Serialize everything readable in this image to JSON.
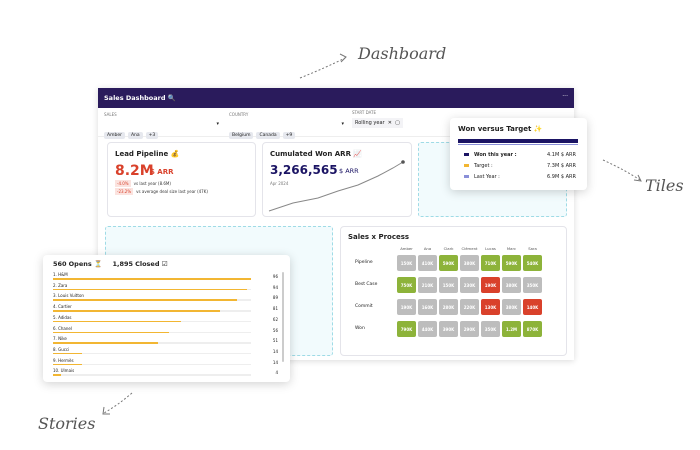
{
  "annotations": {
    "dashboard": "Dashboard",
    "tiles": "Tiles",
    "stories": "Stories"
  },
  "header": {
    "title": "Sales Dashboard 🔍",
    "menu": "···"
  },
  "filters": [
    {
      "label": "SALES",
      "chips": [
        "Amber",
        "Ana"
      ],
      "more": "+3"
    },
    {
      "label": "COUNTRY",
      "chips": [
        "Belgium",
        "Canada"
      ],
      "more": "+9"
    }
  ],
  "start_date": {
    "label": "START DATE",
    "value": "Rolling year"
  },
  "lead_pipeline": {
    "title": "Lead Pipeline 💰",
    "value": "8.2M",
    "unit": "$ ARR",
    "deltas": [
      {
        "change": "-4.0%",
        "text": "vs last year (8.6M)"
      },
      {
        "change": "-23.2%",
        "text": "vs average deal size last year (47K)"
      }
    ]
  },
  "cumulated": {
    "title": "Cumulated Won ARR 📈",
    "value": "3,266,565",
    "unit": "$ ARR",
    "date": "Apr 2024"
  },
  "won_target": {
    "title": "Won versus Target ✨",
    "rows": [
      {
        "label": "Won this year :",
        "value": "4.1M $ ARR",
        "color": "#1b1464"
      },
      {
        "label": "Target :",
        "value": "7.3M $ ARR",
        "color": "#f2b632"
      },
      {
        "label": "Last Year :",
        "value": "6.9M $ ARR",
        "color": "#8a8fd8"
      }
    ]
  },
  "sales_process": {
    "title": "Sales x Process",
    "columns": [
      "Amber",
      "Ana",
      "Clark",
      "Clément",
      "Lucas",
      "Marc",
      "Sara"
    ],
    "rows": [
      {
        "label": "Pipeline",
        "values": [
          "150K",
          "410K",
          "590K",
          "380K",
          "710K",
          "590K",
          "540K"
        ],
        "colors": [
          "#bdbdbd",
          "#bdbdbd",
          "#8db33a",
          "#bdbdbd",
          "#8db33a",
          "#8db33a",
          "#8db33a"
        ]
      },
      {
        "label": "Best Case",
        "values": [
          "750K",
          "210K",
          "150K",
          "230K",
          "190K",
          "380K",
          "350K"
        ],
        "colors": [
          "#8db33a",
          "#bdbdbd",
          "#bdbdbd",
          "#bdbdbd",
          "#d9412b",
          "#bdbdbd",
          "#bdbdbd"
        ]
      },
      {
        "label": "Commit",
        "values": [
          "190K",
          "160K",
          "280K",
          "220K",
          "130K",
          "380K",
          "140K"
        ],
        "colors": [
          "#bdbdbd",
          "#bdbdbd",
          "#bdbdbd",
          "#bdbdbd",
          "#d9412b",
          "#bdbdbd",
          "#d9412b"
        ]
      },
      {
        "label": "Won",
        "values": [
          "790K",
          "440K",
          "390K",
          "290K",
          "350K",
          "1.2M",
          "870K"
        ],
        "colors": [
          "#8db33a",
          "#bdbdbd",
          "#bdbdbd",
          "#bdbdbd",
          "#bdbdbd",
          "#8db33a",
          "#8db33a"
        ]
      }
    ]
  },
  "stories": {
    "opens": "560",
    "opens_label": "Opens ⏳",
    "closed": "1,895",
    "closed_label": "Closed ☑",
    "color": "#f2b632",
    "items": [
      {
        "name": "1. H&M",
        "value": 96
      },
      {
        "name": "2. Zara",
        "value": 94
      },
      {
        "name": "3. Louis Vuitton",
        "value": 89
      },
      {
        "name": "4. Cartier",
        "value": 81
      },
      {
        "name": "5. Adidas",
        "value": 62
      },
      {
        "name": "6. Chanel",
        "value": 56
      },
      {
        "name": "7. Nike",
        "value": 51
      },
      {
        "name": "8. Gucci",
        "value": 14
      },
      {
        "name": "9. Hermès",
        "value": 14
      },
      {
        "name": "10. Ulmais",
        "value": 4
      }
    ]
  }
}
